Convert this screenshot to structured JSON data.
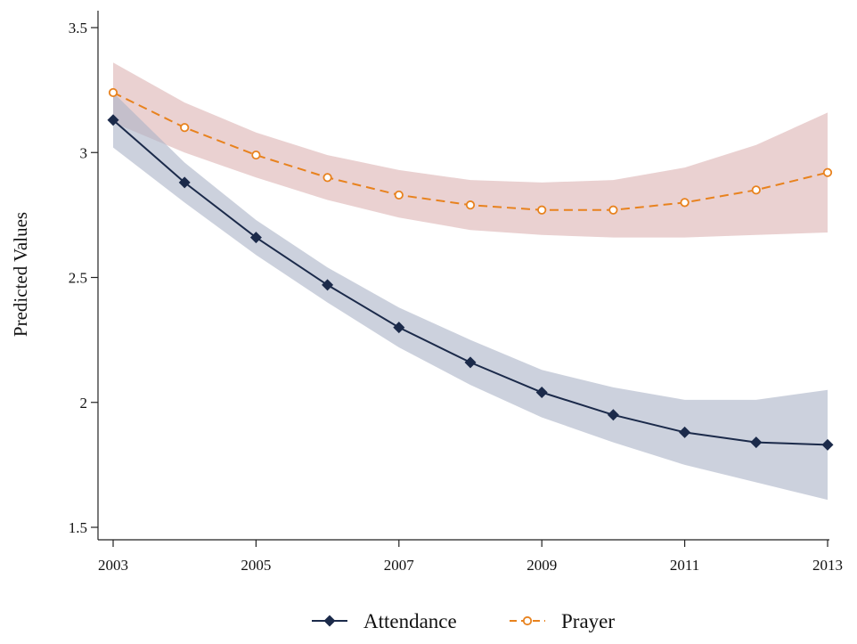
{
  "chart_data": {
    "type": "line",
    "title": "",
    "xlabel": "",
    "ylabel": "Predicted Values",
    "x": [
      2003,
      2004,
      2005,
      2006,
      2007,
      2008,
      2009,
      2010,
      2011,
      2012,
      2013
    ],
    "xticks": [
      "2003",
      "2005",
      "2007",
      "2009",
      "2011",
      "2013"
    ],
    "yticks": [
      "1.5",
      "2",
      "2.5",
      "3",
      "3.5"
    ],
    "xlim": [
      2003,
      2013
    ],
    "ylim": [
      1.5,
      3.5
    ],
    "grid": false,
    "legend_position": "bottom",
    "series": [
      {
        "name": "Attendance",
        "color": "#1b2a4a",
        "band_color": "#aab2c6",
        "marker": "diamond",
        "line_style": "solid",
        "values": [
          3.13,
          2.88,
          2.66,
          2.47,
          2.3,
          2.16,
          2.04,
          1.95,
          1.88,
          1.84,
          1.83
        ],
        "ci_upper": [
          3.24,
          2.96,
          2.73,
          2.54,
          2.38,
          2.25,
          2.13,
          2.06,
          2.01,
          2.01,
          2.05
        ],
        "ci_lower": [
          3.02,
          2.8,
          2.59,
          2.4,
          2.22,
          2.07,
          1.94,
          1.84,
          1.75,
          1.68,
          1.61
        ]
      },
      {
        "name": "Prayer",
        "color": "#e8821e",
        "band_color": "#dcb3b3",
        "marker": "hollow-circle",
        "line_style": "dashed",
        "values": [
          3.24,
          3.1,
          2.99,
          2.9,
          2.83,
          2.79,
          2.77,
          2.77,
          2.8,
          2.85,
          2.92
        ],
        "ci_upper": [
          3.36,
          3.2,
          3.08,
          2.99,
          2.93,
          2.89,
          2.88,
          2.89,
          2.94,
          3.03,
          3.16
        ],
        "ci_lower": [
          3.12,
          3.0,
          2.9,
          2.81,
          2.74,
          2.69,
          2.67,
          2.66,
          2.66,
          2.67,
          2.68
        ]
      }
    ]
  }
}
